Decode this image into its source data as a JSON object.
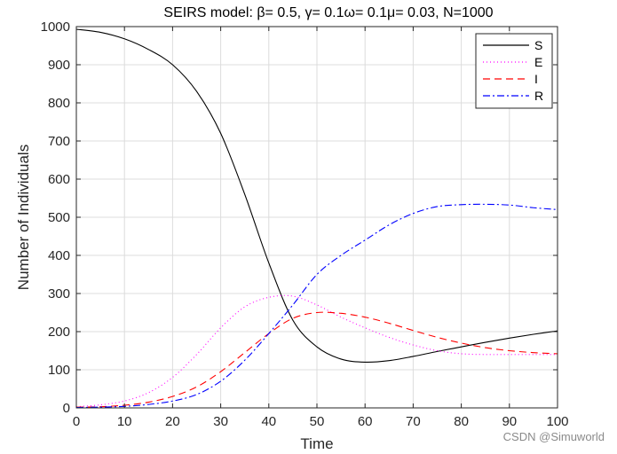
{
  "chart_data": {
    "type": "line",
    "title": "SEIRS model: β= 0.5, γ= 0.1ω= 0.1μ= 0.03, N=1000",
    "xlabel": "Time",
    "ylabel": "Number of Individuals",
    "xlim": [
      0,
      100
    ],
    "ylim": [
      0,
      1000
    ],
    "xticks": [
      0,
      10,
      20,
      30,
      40,
      50,
      60,
      70,
      80,
      90,
      100
    ],
    "yticks": [
      0,
      100,
      200,
      300,
      400,
      500,
      600,
      700,
      800,
      900,
      1000
    ],
    "grid": true,
    "legend_position": "upper right",
    "x": [
      0,
      5,
      10,
      15,
      20,
      25,
      30,
      35,
      40,
      45,
      50,
      55,
      60,
      65,
      70,
      75,
      80,
      85,
      90,
      95,
      100
    ],
    "series": [
      {
        "name": "S",
        "color": "#000000",
        "style": "solid",
        "values": [
          993,
          985,
          968,
          940,
          900,
          830,
          720,
          560,
          380,
          230,
          160,
          128,
          120,
          124,
          135,
          148,
          160,
          172,
          183,
          193,
          202
        ]
      },
      {
        "name": "E",
        "color": "#ff00ff",
        "style": "dotted",
        "values": [
          3,
          8,
          18,
          40,
          80,
          140,
          210,
          265,
          290,
          293,
          270,
          238,
          210,
          185,
          165,
          150,
          142,
          140,
          140,
          140,
          140
        ]
      },
      {
        "name": "I",
        "color": "#ff0000",
        "style": "dashed",
        "values": [
          2,
          3,
          7,
          15,
          30,
          55,
          95,
          145,
          195,
          235,
          250,
          248,
          238,
          222,
          203,
          185,
          170,
          158,
          150,
          145,
          142
        ]
      },
      {
        "name": "R",
        "color": "#0000ff",
        "style": "dashdot",
        "values": [
          1,
          2,
          4,
          9,
          18,
          35,
          70,
          125,
          195,
          270,
          350,
          400,
          440,
          480,
          510,
          528,
          533,
          534,
          532,
          525,
          520
        ]
      }
    ]
  },
  "watermark": "CSDN @Simuworld"
}
